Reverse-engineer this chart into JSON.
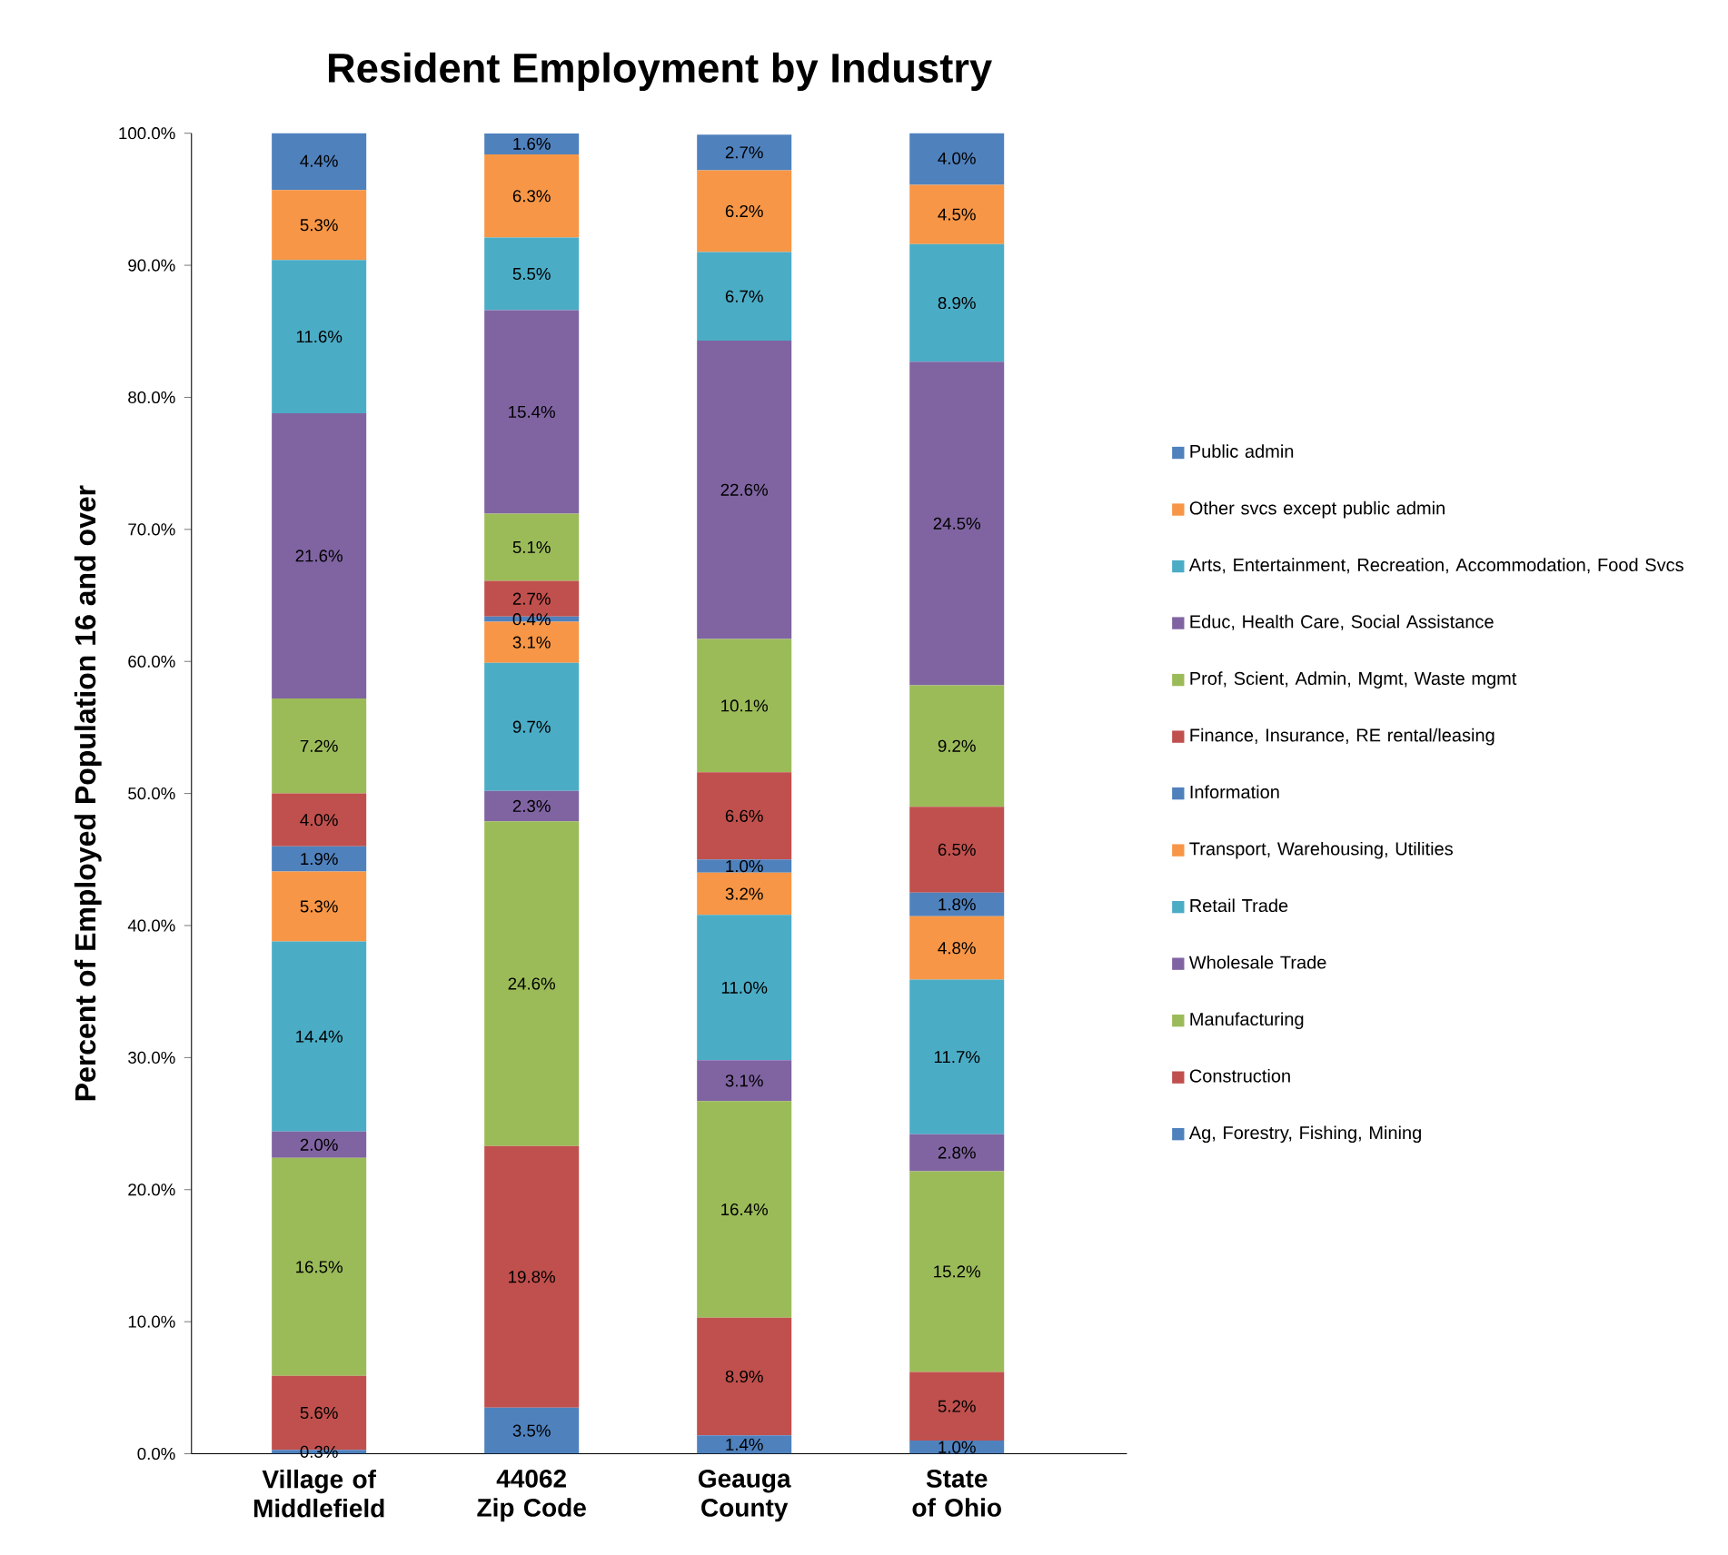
{
  "chart_data": {
    "type": "bar",
    "stacked": true,
    "title": "Resident Employment by Industry",
    "ylabel": "Percent of Employed Population 16 and over",
    "categories": [
      "Village of Middlefield",
      "44062 Zip Code",
      "Geauga County",
      "State of Ohio"
    ],
    "ylim": [
      0,
      100
    ],
    "yticks": [
      {
        "value": 0,
        "label": "0.0%"
      },
      {
        "value": 10,
        "label": "10.0%"
      },
      {
        "value": 20,
        "label": "20.0%"
      },
      {
        "value": 30,
        "label": "30.0%"
      },
      {
        "value": 40,
        "label": "40.0%"
      },
      {
        "value": 50,
        "label": "50.0%"
      },
      {
        "value": 60,
        "label": "60.0%"
      },
      {
        "value": 70,
        "label": "70.0%"
      },
      {
        "value": 80,
        "label": "80.0%"
      },
      {
        "value": 90,
        "label": "90.0%"
      },
      {
        "value": 100,
        "label": "100.0%"
      }
    ],
    "legend": "right",
    "series": [
      {
        "name": "Ag, Forestry, Fishing, Mining",
        "color": "#4f81bd",
        "values": [
          0.3,
          3.5,
          1.4,
          1.0
        ],
        "value_labels": [
          "0.3%",
          "3.5%",
          "1.4%",
          "1.0%"
        ]
      },
      {
        "name": "Construction",
        "color": "#c0504d",
        "values": [
          5.6,
          19.8,
          8.9,
          5.2
        ],
        "value_labels": [
          "5.6%",
          "19.8%",
          "8.9%",
          "5.2%"
        ]
      },
      {
        "name": "Manufacturing",
        "color": "#9bbb59",
        "values": [
          16.5,
          24.6,
          16.4,
          15.2
        ],
        "value_labels": [
          "16.5%",
          "24.6%",
          "16.4%",
          "15.2%"
        ]
      },
      {
        "name": "Wholesale Trade",
        "color": "#8064a2",
        "values": [
          2.0,
          2.3,
          3.1,
          2.8
        ],
        "value_labels": [
          "2.0%",
          "2.3%",
          "3.1%",
          "2.8%"
        ]
      },
      {
        "name": "Retail Trade",
        "color": "#4bacc6",
        "values": [
          14.4,
          9.7,
          11.0,
          11.7
        ],
        "value_labels": [
          "14.4%",
          "9.7%",
          "11.0%",
          "11.7%"
        ]
      },
      {
        "name": "Transport, Warehousing, Utilities",
        "color": "#f79646",
        "values": [
          5.3,
          3.1,
          3.2,
          4.8
        ],
        "value_labels": [
          "5.3%",
          "3.1%",
          "3.2%",
          "4.8%"
        ]
      },
      {
        "name": "Information",
        "color": "#4f81bd",
        "values": [
          1.9,
          0.4,
          1.0,
          1.8
        ],
        "value_labels": [
          "1.9%",
          "0.4%",
          "1.0%",
          "1.8%"
        ]
      },
      {
        "name": "Finance, Insurance, RE rental/leasing",
        "color": "#c0504d",
        "values": [
          4.0,
          2.7,
          6.6,
          6.5
        ],
        "value_labels": [
          "4.0%",
          "2.7%",
          "6.6%",
          "6.5%"
        ]
      },
      {
        "name": "Prof, Scient, Admin, Mgmt, Waste mgmt",
        "color": "#9bbb59",
        "values": [
          7.2,
          5.1,
          10.1,
          9.2
        ],
        "value_labels": [
          "7.2%",
          "5.1%",
          "10.1%",
          "9.2%"
        ]
      },
      {
        "name": "Educ, Health Care, Social Assistance",
        "color": "#8064a2",
        "values": [
          21.6,
          15.4,
          22.6,
          24.5
        ],
        "value_labels": [
          "21.6%",
          "15.4%",
          "22.6%",
          "24.5%"
        ]
      },
      {
        "name": "Arts, Entertainment, Recreation, Accommodation, Food Svcs",
        "color": "#4bacc6",
        "values": [
          11.6,
          5.5,
          6.7,
          8.9
        ],
        "value_labels": [
          "11.6%",
          "5.5%",
          "6.7%",
          "8.9%"
        ]
      },
      {
        "name": "Other svcs except public admin",
        "color": "#f79646",
        "values": [
          5.3,
          6.3,
          6.2,
          4.5
        ],
        "value_labels": [
          "5.3%",
          "6.3%",
          "6.2%",
          "4.5%"
        ]
      },
      {
        "name": "Public admin",
        "color": "#4f81bd",
        "values": [
          4.4,
          1.6,
          2.7,
          4.0
        ],
        "value_labels": [
          "4.4%",
          "1.6%",
          "2.7%",
          "4.0%"
        ]
      }
    ]
  }
}
